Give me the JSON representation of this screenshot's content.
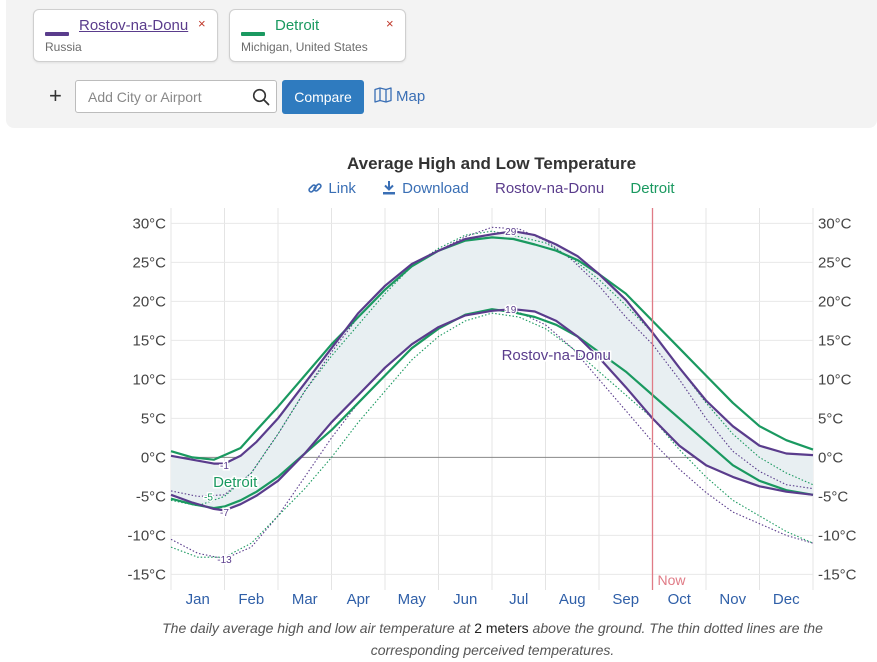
{
  "cities": [
    {
      "name": "Rostov-na-Donu",
      "region": "Russia",
      "color": "#5a3c8c",
      "remove": "×"
    },
    {
      "name": "Detroit",
      "region": "Michigan, United States",
      "color": "#1a9960",
      "remove": "×"
    }
  ],
  "controls": {
    "add": "+",
    "search_placeholder": "Add City or Airport",
    "compare": "Compare",
    "map": "Map"
  },
  "legend": {
    "link": "Link",
    "download": "Download",
    "series": [
      "Rostov-na-Donu",
      "Detroit"
    ]
  },
  "caption": {
    "before": "The daily average high and low air temperature at ",
    "emph": "2 meters",
    "after": " above the ground. The thin dotted lines are the corresponding perceived temperatures."
  },
  "chart_data": {
    "type": "line",
    "title": "Average High and Low Temperature",
    "x_domain": [
      0,
      12
    ],
    "months": [
      "Jan",
      "Feb",
      "Mar",
      "Apr",
      "May",
      "Jun",
      "Jul",
      "Aug",
      "Sep",
      "Oct",
      "Nov",
      "Dec"
    ],
    "ylim": [
      -17,
      33
    ],
    "y_ticks": [
      30,
      25,
      20,
      15,
      10,
      5,
      0,
      -5,
      -10,
      -15
    ],
    "y_tick_labels": [
      "30°C",
      "25°C",
      "20°C",
      "15°C",
      "10°C",
      "5°C",
      "0°C",
      "-5°C",
      "-10°C",
      "-15°C"
    ],
    "now_position": 9.0,
    "now_label": "Now",
    "colors": {
      "rostov": "#5a3c8c",
      "detroit": "#1a9960",
      "band": "#e8eff2",
      "now": "#e07b86"
    },
    "series": [
      {
        "name": "Rostov-na-Donu high",
        "x": [
          0,
          0.4,
          0.8,
          1.0,
          1.3,
          1.6,
          2.0,
          2.5,
          3.0,
          3.5,
          4.0,
          4.5,
          5.0,
          5.5,
          6.0,
          6.4,
          6.8,
          7.2,
          7.6,
          8.0,
          8.5,
          9.0,
          9.5,
          10.0,
          10.5,
          11.0,
          11.5,
          12.0
        ],
        "y": [
          0.2,
          -0.3,
          -0.8,
          -0.8,
          0.2,
          2.0,
          5.0,
          9.5,
          14.0,
          18.5,
          22.0,
          24.8,
          26.5,
          28.0,
          28.6,
          29.0,
          28.5,
          27.3,
          25.8,
          23.5,
          20.2,
          16.0,
          11.5,
          7.3,
          4.0,
          1.5,
          0.5,
          0.3
        ]
      },
      {
        "name": "Rostov-na-Donu low",
        "x": [
          0,
          0.4,
          0.8,
          1.0,
          1.3,
          1.6,
          2.0,
          2.5,
          3.0,
          3.5,
          4.0,
          4.5,
          5.0,
          5.5,
          6.0,
          6.4,
          6.8,
          7.2,
          7.6,
          8.0,
          8.5,
          9.0,
          9.5,
          10.0,
          10.5,
          11.0,
          11.5,
          12.0
        ],
        "y": [
          -4.8,
          -5.8,
          -6.6,
          -6.8,
          -6.0,
          -4.9,
          -3.0,
          0.5,
          4.5,
          8.0,
          11.5,
          14.5,
          16.7,
          18.2,
          18.8,
          19.0,
          18.7,
          17.5,
          15.5,
          12.8,
          9.0,
          5.0,
          1.5,
          -1.0,
          -2.5,
          -3.7,
          -4.4,
          -4.8
        ]
      },
      {
        "name": "Detroit high",
        "x": [
          0,
          0.4,
          0.8,
          1.0,
          1.3,
          1.6,
          2.0,
          2.5,
          3.0,
          3.5,
          4.0,
          4.5,
          5.0,
          5.5,
          6.0,
          6.4,
          6.8,
          7.2,
          7.6,
          8.0,
          8.5,
          9.0,
          9.5,
          10.0,
          10.5,
          11.0,
          11.5,
          12.0
        ],
        "y": [
          0.8,
          0.0,
          -0.3,
          0.3,
          1.2,
          3.5,
          6.5,
          10.5,
          14.5,
          18.0,
          21.5,
          24.5,
          26.5,
          27.8,
          28.2,
          28.0,
          27.3,
          26.5,
          25.3,
          23.5,
          21.0,
          17.5,
          14.0,
          10.5,
          7.0,
          4.0,
          2.2,
          1.0
        ]
      },
      {
        "name": "Detroit low",
        "x": [
          0,
          0.4,
          0.8,
          1.0,
          1.3,
          1.6,
          2.0,
          2.5,
          3.0,
          3.5,
          4.0,
          4.5,
          5.0,
          5.5,
          6.0,
          6.4,
          6.8,
          7.2,
          7.6,
          8.0,
          8.5,
          9.0,
          9.5,
          10.0,
          10.5,
          11.0,
          11.5,
          12.0
        ],
        "y": [
          -5.3,
          -6.0,
          -6.5,
          -6.3,
          -5.5,
          -4.4,
          -2.5,
          0.5,
          3.5,
          7.0,
          10.5,
          14.0,
          16.5,
          18.3,
          19.0,
          18.6,
          18.0,
          17.0,
          15.5,
          13.5,
          11.0,
          8.0,
          5.0,
          2.0,
          -1.0,
          -3.0,
          -4.2,
          -4.8
        ]
      },
      {
        "name": "Rostov-na-Donu perceived high",
        "x": [
          0,
          0.5,
          1.0,
          1.5,
          2.0,
          2.5,
          3.0,
          3.5,
          4.0,
          4.5,
          5.0,
          5.5,
          6.0,
          6.5,
          7.0,
          7.5,
          8.0,
          8.5,
          9.0,
          9.5,
          10.0,
          10.5,
          11.0,
          11.5,
          12.0
        ],
        "y": [
          -4.3,
          -5.0,
          -4.8,
          -2.0,
          3.0,
          8.5,
          13.5,
          18.0,
          21.5,
          24.5,
          26.5,
          28.3,
          29.5,
          29.3,
          27.8,
          25.3,
          22.0,
          18.0,
          14.5,
          10.0,
          5.0,
          0.8,
          -1.8,
          -3.5,
          -4.0
        ]
      },
      {
        "name": "Rostov-na-Donu perceived low",
        "x": [
          0,
          0.5,
          1.0,
          1.5,
          2.0,
          2.5,
          3.0,
          3.5,
          4.0,
          4.5,
          5.0,
          5.5,
          6.0,
          6.5,
          7.0,
          7.5,
          8.0,
          8.5,
          9.0,
          9.5,
          10.0,
          10.5,
          11.0,
          11.5,
          12.0
        ],
        "y": [
          -10.5,
          -12.3,
          -13.0,
          -11.5,
          -7.5,
          -2.5,
          2.5,
          7.0,
          10.5,
          14.0,
          16.5,
          18.3,
          19.0,
          18.6,
          17.0,
          14.0,
          10.0,
          6.0,
          2.0,
          -1.5,
          -4.5,
          -7.0,
          -8.5,
          -10.0,
          -11.0
        ]
      },
      {
        "name": "Detroit perceived high",
        "x": [
          0,
          0.5,
          1.0,
          1.5,
          2.0,
          2.5,
          3.0,
          3.5,
          4.0,
          4.5,
          5.0,
          5.5,
          6.0,
          6.5,
          7.0,
          7.5,
          8.0,
          8.5,
          9.0,
          9.5,
          10.0,
          10.5,
          11.0,
          11.5,
          12.0
        ],
        "y": [
          -5.5,
          -6.2,
          -5.0,
          -2.0,
          3.0,
          8.5,
          13.0,
          17.0,
          21.0,
          24.5,
          26.8,
          28.5,
          29.0,
          28.3,
          27.5,
          25.5,
          22.8,
          19.5,
          16.0,
          11.5,
          7.0,
          3.0,
          0.0,
          -2.0,
          -3.5
        ]
      },
      {
        "name": "Detroit perceived low",
        "x": [
          0,
          0.5,
          1.0,
          1.5,
          2.0,
          2.5,
          3.0,
          3.5,
          4.0,
          4.5,
          5.0,
          5.5,
          6.0,
          6.5,
          7.0,
          7.5,
          8.0,
          8.5,
          9.0,
          9.5,
          10.0,
          10.5,
          11.0,
          11.5,
          12.0
        ],
        "y": [
          -11.5,
          -12.8,
          -12.8,
          -11.0,
          -7.5,
          -4.0,
          0.0,
          4.5,
          8.5,
          12.5,
          15.5,
          17.5,
          18.5,
          18.0,
          16.5,
          14.0,
          11.0,
          8.0,
          5.0,
          1.0,
          -2.5,
          -5.5,
          -7.5,
          -9.5,
          -11.0
        ]
      }
    ],
    "annotations": [
      {
        "text": "29",
        "x": 6.35,
        "y": 29,
        "color": "#5a3c8c"
      },
      {
        "text": "19",
        "x": 6.35,
        "y": 19,
        "color": "#5a3c8c"
      },
      {
        "text": "-1",
        "x": 1.0,
        "y": -1,
        "color": "#5a3c8c"
      },
      {
        "text": "-7",
        "x": 1.0,
        "y": -7,
        "color": "#5a3c8c"
      },
      {
        "text": "-5",
        "x": 0.7,
        "y": -5,
        "color": "#1a9960"
      },
      {
        "text": "-13",
        "x": 1.0,
        "y": -13,
        "color": "#5a3c8c"
      }
    ],
    "series_labels": [
      {
        "text": "Rostov-na-Donu",
        "x": 7.2,
        "y": 12.5,
        "color": "#5a3c8c"
      },
      {
        "text": "Detroit",
        "x": 1.2,
        "y": -3.8,
        "color": "#1a9960"
      }
    ]
  }
}
